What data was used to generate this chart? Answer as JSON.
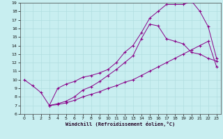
{
  "xlabel": "Windchill (Refroidissement éolien,°C)",
  "bg_color": "#c8eef0",
  "grid_color": "#b0dde0",
  "line_color": "#880088",
  "xlim": [
    -0.5,
    23.5
  ],
  "ylim": [
    6,
    19
  ],
  "xticks": [
    0,
    1,
    2,
    3,
    4,
    5,
    6,
    7,
    8,
    9,
    10,
    11,
    12,
    13,
    14,
    15,
    16,
    17,
    18,
    19,
    20,
    21,
    22,
    23
  ],
  "yticks": [
    6,
    7,
    8,
    9,
    10,
    11,
    12,
    13,
    14,
    15,
    16,
    17,
    18,
    19
  ],
  "line1_x": [
    0,
    1,
    2,
    3,
    4,
    5,
    6,
    7,
    8,
    9,
    10,
    11,
    12,
    13,
    14,
    15,
    16,
    17,
    18,
    19,
    20,
    21,
    22,
    23
  ],
  "line1_y": [
    10.0,
    9.3,
    8.5,
    7.0,
    9.0,
    9.5,
    9.8,
    10.3,
    10.5,
    10.8,
    11.2,
    12.0,
    13.2,
    14.0,
    15.5,
    17.2,
    18.0,
    18.8,
    18.8,
    18.8,
    19.2,
    18.0,
    16.2,
    12.5
  ],
  "line2_x": [
    3,
    4,
    5,
    6,
    7,
    8,
    9,
    10,
    11,
    12,
    13,
    14,
    15,
    16,
    17,
    18,
    19,
    20,
    21,
    22,
    23
  ],
  "line2_y": [
    7.0,
    7.2,
    7.5,
    8.0,
    8.8,
    9.2,
    9.8,
    10.5,
    11.2,
    12.0,
    12.8,
    14.8,
    16.5,
    16.3,
    14.8,
    14.5,
    14.2,
    13.2,
    13.0,
    12.5,
    12.2
  ],
  "line3_x": [
    3,
    4,
    5,
    6,
    7,
    8,
    9,
    10,
    11,
    12,
    13,
    14,
    15,
    16,
    17,
    18,
    19,
    20,
    21,
    22,
    23
  ],
  "line3_y": [
    7.0,
    7.1,
    7.3,
    7.6,
    8.0,
    8.3,
    8.6,
    9.0,
    9.3,
    9.7,
    10.0,
    10.5,
    11.0,
    11.5,
    12.0,
    12.5,
    13.0,
    13.5,
    14.0,
    14.5,
    11.5
  ]
}
